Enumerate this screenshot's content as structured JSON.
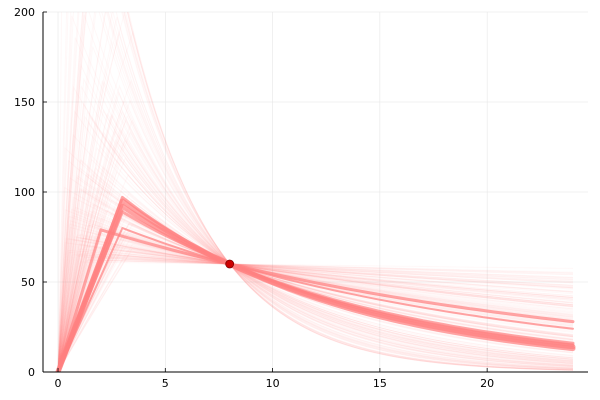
{
  "chart_data": {
    "type": "line",
    "title": "",
    "xlabel": "",
    "ylabel": "",
    "xlim": [
      -0.7,
      24.7
    ],
    "ylim": [
      0,
      200
    ],
    "xticks": [
      0,
      5,
      10,
      15,
      20
    ],
    "yticks": [
      0,
      50,
      100,
      150,
      200
    ],
    "grid": true,
    "legend": "none",
    "line_color": "#ff8080",
    "marker_color": "#cc0000",
    "highlight_point": {
      "x": 8,
      "y": 60
    },
    "ensemble": {
      "dose_end_min": 0.3,
      "dose_end_max": 3.5,
      "value_at_x8": 60,
      "value_at_x24_min": 1,
      "value_at_x24_max": 58,
      "x_end": 24
    },
    "series": [
      {
        "x": [
          0,
          3,
          8,
          24
        ],
        "y": [
          0,
          95,
          60,
          14
        ],
        "width": "bold"
      },
      {
        "x": [
          0,
          3,
          8,
          24
        ],
        "y": [
          0,
          92,
          60,
          13
        ],
        "width": "bold"
      },
      {
        "x": [
          0,
          3,
          8,
          24
        ],
        "y": [
          0,
          97,
          60,
          15
        ],
        "width": "medium"
      },
      {
        "x": [
          0,
          3,
          8,
          24
        ],
        "y": [
          0,
          89,
          60,
          16
        ],
        "width": "medium"
      },
      {
        "x": [
          0,
          2,
          8,
          24
        ],
        "y": [
          0,
          79,
          60,
          28
        ],
        "width": "medium"
      },
      {
        "x": [
          0,
          3,
          8,
          24
        ],
        "y": [
          0,
          80,
          60,
          24
        ],
        "width": "thin"
      }
    ]
  }
}
